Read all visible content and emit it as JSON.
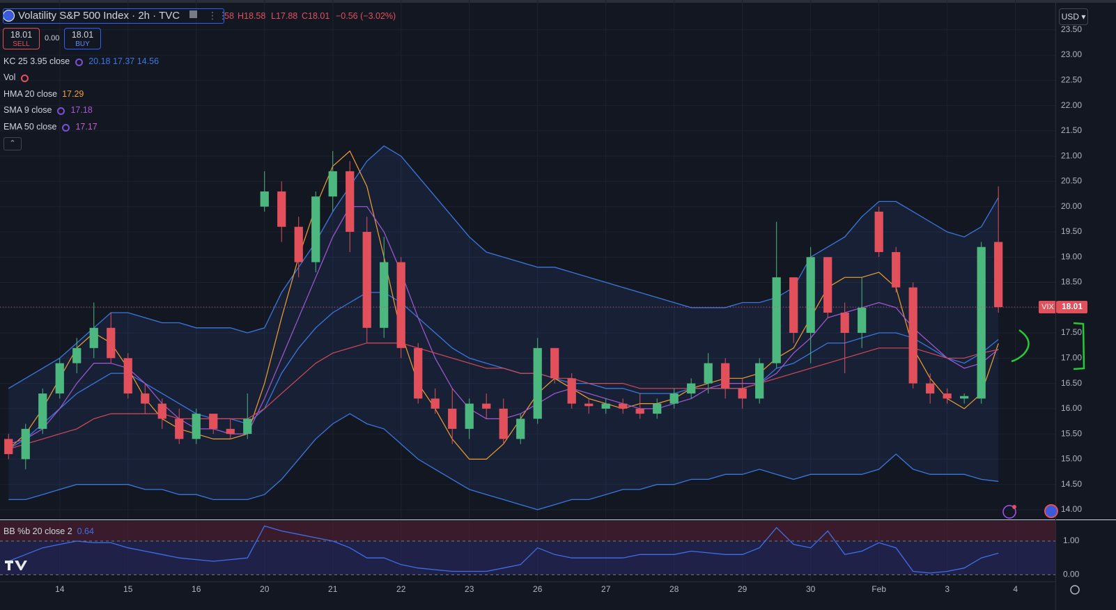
{
  "header": {
    "symbol": "Volatility S&P 500 Index · 2h · TVC",
    "open_fragment": "58",
    "high": "H18.58",
    "low": "L17.88",
    "close": "C18.01",
    "change": "−0.56 (−3.02%)",
    "sell_price": "18.01",
    "sell": "SELL",
    "spread": "0.00",
    "buy_price": "18.01",
    "buy": "BUY",
    "currency": "USD",
    "volume": "Vol"
  },
  "chart_data": [
    {
      "type": "candlestick",
      "symbol_tag": "VIX",
      "up_color": "#4cb87f",
      "down_color": "#e2505c",
      "xlim": [
        -0.5,
        61.34
      ],
      "ylim": [
        13.82,
        24.09
      ],
      "grid": true,
      "xticks": [
        {
          "value": 3,
          "label": "14"
        },
        {
          "value": 7,
          "label": "15"
        },
        {
          "value": 11,
          "label": "16"
        },
        {
          "value": 15,
          "label": "20"
        },
        {
          "value": 19,
          "label": "21"
        },
        {
          "value": 23,
          "label": "22"
        },
        {
          "value": 27,
          "label": "23"
        },
        {
          "value": 31,
          "label": "26"
        },
        {
          "value": 35,
          "label": "27"
        },
        {
          "value": 39,
          "label": "28"
        },
        {
          "value": 43,
          "label": "29"
        },
        {
          "value": 47,
          "label": "30"
        },
        {
          "value": 51,
          "label": "Feb"
        },
        {
          "value": 55,
          "label": "3"
        },
        {
          "value": 59,
          "label": "4"
        }
      ],
      "yticks": [
        {
          "value": 14,
          "label": "14.00"
        },
        {
          "value": 14.5,
          "label": "14.50"
        },
        {
          "value": 15,
          "label": "15.00"
        },
        {
          "value": 15.5,
          "label": "15.50"
        },
        {
          "value": 16,
          "label": "16.00"
        },
        {
          "value": 16.5,
          "label": "16.50"
        },
        {
          "value": 17,
          "label": "17.00"
        },
        {
          "value": 17.5,
          "label": "17.50"
        },
        {
          "value": 18,
          "label": "18.00"
        },
        {
          "value": 18.5,
          "label": "18.50"
        },
        {
          "value": 19,
          "label": "19.00"
        },
        {
          "value": 19.5,
          "label": "19.50"
        },
        {
          "value": 20,
          "label": "20.00"
        },
        {
          "value": 20.5,
          "label": "20.50"
        },
        {
          "value": 21,
          "label": "21.00"
        },
        {
          "value": 21.5,
          "label": "21.50"
        },
        {
          "value": 22,
          "label": "22.00"
        },
        {
          "value": 22.5,
          "label": "22.50"
        },
        {
          "value": 23,
          "label": "23.00"
        },
        {
          "value": 23.5,
          "label": "23.50"
        }
      ],
      "open": [
        15.4,
        15.0,
        15.6,
        16.3,
        16.9,
        17.2,
        17.6,
        17.0,
        16.3,
        16.1,
        15.8,
        15.4,
        15.9,
        15.6,
        15.5,
        20.0,
        20.3,
        19.6,
        18.9,
        20.2,
        20.7,
        19.5,
        17.6,
        18.9,
        17.2,
        16.2,
        16.0,
        15.6,
        16.1,
        16.0,
        15.4,
        15.8,
        17.2,
        16.6,
        16.1,
        16.0,
        16.1,
        16.0,
        15.9,
        16.1,
        16.3,
        16.5,
        16.9,
        16.4,
        16.2,
        16.9,
        18.6,
        17.5,
        19.0,
        17.9,
        17.5,
        19.9,
        19.1,
        18.4,
        16.5,
        16.3,
        16.2,
        16.2,
        19.3
      ],
      "high": [
        15.5,
        15.7,
        16.4,
        17.0,
        17.4,
        18.1,
        17.9,
        17.1,
        16.5,
        16.2,
        16.0,
        16.0,
        15.9,
        15.8,
        16.3,
        20.7,
        20.5,
        19.8,
        20.3,
        21.1,
        20.9,
        19.8,
        19.4,
        19.0,
        17.3,
        16.4,
        16.4,
        16.2,
        16.3,
        16.2,
        15.9,
        17.4,
        17.2,
        16.7,
        16.2,
        16.2,
        16.2,
        16.3,
        16.2,
        16.4,
        16.6,
        17.1,
        17.0,
        16.6,
        17.0,
        19.7,
        18.6,
        19.2,
        19.0,
        18.1,
        18.6,
        20.0,
        19.2,
        18.5,
        16.7,
        16.4,
        16.3,
        19.3,
        20.4
      ],
      "low": [
        15.0,
        14.8,
        15.5,
        16.2,
        16.7,
        17.0,
        16.9,
        16.2,
        15.9,
        15.6,
        15.3,
        15.3,
        15.5,
        15.4,
        15.4,
        19.9,
        19.3,
        18.6,
        18.7,
        19.9,
        19.1,
        17.3,
        17.4,
        17.0,
        16.1,
        15.9,
        15.3,
        15.4,
        15.8,
        15.3,
        15.3,
        15.7,
        16.5,
        16.0,
        15.9,
        15.9,
        15.9,
        15.8,
        15.8,
        16.0,
        16.2,
        16.3,
        16.2,
        16.0,
        16.1,
        16.8,
        17.3,
        16.9,
        17.8,
        16.7,
        17.2,
        19.0,
        18.3,
        16.4,
        16.1,
        16.1,
        16.1,
        16.1,
        17.9
      ],
      "close": [
        15.1,
        15.6,
        16.3,
        16.9,
        17.2,
        17.6,
        17.0,
        16.3,
        16.1,
        15.8,
        15.4,
        15.9,
        15.6,
        15.5,
        15.8,
        20.3,
        19.6,
        18.9,
        20.2,
        20.7,
        19.5,
        17.6,
        18.9,
        17.2,
        16.2,
        16.0,
        15.6,
        16.1,
        16.0,
        15.4,
        15.8,
        17.2,
        16.6,
        16.1,
        16.05,
        16.1,
        16.0,
        15.9,
        16.1,
        16.3,
        16.5,
        16.9,
        16.4,
        16.2,
        16.9,
        18.6,
        17.5,
        19.0,
        17.9,
        17.5,
        18.0,
        19.1,
        18.4,
        16.5,
        16.3,
        16.2,
        16.25,
        19.2,
        18.01
      ],
      "series": [
        {
          "name": "KC 25 3.95 close",
          "color": "#3a78e0",
          "upper": [
            16.4,
            16.6,
            16.8,
            17.0,
            17.3,
            17.6,
            17.9,
            17.9,
            17.8,
            17.7,
            17.7,
            17.6,
            17.6,
            17.6,
            17.5,
            17.6,
            18.3,
            18.8,
            19.3,
            19.9,
            20.4,
            20.9,
            21.2,
            21.0,
            20.6,
            20.2,
            19.8,
            19.4,
            19.1,
            19.0,
            18.9,
            18.8,
            18.8,
            18.7,
            18.6,
            18.5,
            18.4,
            18.3,
            18.2,
            18.1,
            18.0,
            18.0,
            18.0,
            18.1,
            18.1,
            18.2,
            18.4,
            19.0,
            19.2,
            19.4,
            19.8,
            20.1,
            20.1,
            19.9,
            19.7,
            19.5,
            19.4,
            19.6,
            20.18
          ],
          "basis": [
            15.2,
            15.4,
            15.7,
            16.0,
            16.3,
            16.5,
            16.7,
            16.7,
            16.5,
            16.3,
            16.1,
            15.9,
            15.8,
            15.8,
            15.7,
            16.0,
            16.7,
            17.2,
            17.6,
            17.9,
            18.1,
            18.3,
            18.3,
            18.1,
            17.8,
            17.5,
            17.2,
            17.0,
            16.9,
            16.8,
            16.7,
            16.7,
            16.6,
            16.5,
            16.5,
            16.4,
            16.4,
            16.3,
            16.3,
            16.3,
            16.4,
            16.4,
            16.4,
            16.4,
            16.5,
            16.8,
            16.9,
            17.1,
            17.3,
            17.3,
            17.4,
            17.5,
            17.5,
            17.4,
            17.2,
            17.0,
            16.9,
            17.1,
            17.37
          ],
          "lower": [
            14.2,
            14.2,
            14.3,
            14.4,
            14.5,
            14.5,
            14.5,
            14.5,
            14.4,
            14.4,
            14.3,
            14.3,
            14.2,
            14.2,
            14.2,
            14.3,
            14.6,
            15.0,
            15.4,
            15.7,
            15.9,
            15.7,
            15.6,
            15.3,
            15.0,
            14.8,
            14.6,
            14.4,
            14.3,
            14.2,
            14.1,
            14.0,
            14.1,
            14.2,
            14.2,
            14.3,
            14.4,
            14.4,
            14.5,
            14.5,
            14.6,
            14.6,
            14.7,
            14.7,
            14.8,
            14.7,
            14.6,
            14.7,
            14.7,
            14.7,
            14.7,
            14.8,
            15.1,
            14.8,
            14.7,
            14.7,
            14.7,
            14.6,
            14.56
          ]
        },
        {
          "name": "HMA 20 close",
          "color": "#f0a030",
          "values": [
            15.2,
            15.5,
            16.0,
            16.6,
            17.2,
            17.5,
            17.3,
            16.8,
            16.2,
            15.8,
            15.6,
            15.5,
            15.4,
            15.4,
            15.5,
            16.5,
            17.8,
            19.0,
            20.0,
            20.8,
            21.1,
            20.4,
            19.0,
            17.5,
            16.5,
            16.0,
            15.4,
            15.0,
            15.0,
            15.3,
            15.8,
            16.3,
            16.6,
            16.4,
            16.2,
            16.1,
            16.0,
            16.1,
            16.1,
            16.2,
            16.4,
            16.5,
            16.6,
            16.6,
            16.7,
            17.0,
            17.2,
            17.8,
            18.4,
            18.6,
            18.6,
            18.7,
            18.4,
            17.2,
            16.6,
            16.2,
            16.0,
            16.3,
            17.29
          ]
        },
        {
          "name": "SMA 9 close",
          "color": "#a65ad8",
          "values": [
            15.3,
            15.4,
            15.6,
            16.0,
            16.5,
            16.9,
            16.9,
            16.8,
            16.5,
            16.1,
            15.8,
            15.6,
            15.6,
            15.5,
            15.5,
            16.2,
            17.0,
            17.8,
            18.6,
            19.4,
            20.0,
            20.0,
            19.5,
            18.7,
            17.8,
            17.0,
            16.4,
            16.0,
            15.8,
            15.8,
            15.9,
            16.1,
            16.3,
            16.4,
            16.3,
            16.2,
            16.1,
            16.0,
            16.0,
            16.1,
            16.2,
            16.4,
            16.5,
            16.5,
            16.5,
            16.7,
            17.1,
            17.4,
            17.8,
            17.9,
            18.0,
            18.1,
            18.0,
            17.6,
            17.3,
            17.0,
            16.8,
            16.9,
            17.18
          ]
        },
        {
          "name": "EMA 50 close",
          "color": "#d84a58",
          "values": [
            15.2,
            15.3,
            15.4,
            15.5,
            15.6,
            15.8,
            15.9,
            15.9,
            15.9,
            15.9,
            15.8,
            15.8,
            15.8,
            15.8,
            15.8,
            16.0,
            16.3,
            16.6,
            16.9,
            17.1,
            17.2,
            17.3,
            17.3,
            17.3,
            17.2,
            17.1,
            17.0,
            16.9,
            16.8,
            16.8,
            16.7,
            16.7,
            16.6,
            16.6,
            16.5,
            16.5,
            16.5,
            16.4,
            16.4,
            16.4,
            16.4,
            16.4,
            16.4,
            16.4,
            16.5,
            16.6,
            16.7,
            16.8,
            16.9,
            17.0,
            17.1,
            17.2,
            17.2,
            17.2,
            17.1,
            17.0,
            17.0,
            17.1,
            17.17
          ]
        }
      ]
    },
    {
      "type": "line",
      "xlim": [
        -0.5,
        61.34
      ],
      "ylim": [
        -0.2,
        1.6
      ],
      "yticks": [
        {
          "value": 0,
          "label": "0.00"
        },
        {
          "value": 1,
          "label": "1.00"
        }
      ],
      "series": [
        {
          "name": "BB %b 20 close 2",
          "color": "#3f6fe8",
          "values": [
            0.4,
            0.6,
            0.8,
            0.9,
            1.0,
            0.95,
            0.95,
            0.8,
            0.7,
            0.6,
            0.5,
            0.45,
            0.4,
            0.45,
            0.5,
            1.45,
            1.3,
            1.2,
            1.1,
            1.0,
            0.8,
            0.5,
            0.5,
            0.3,
            0.2,
            0.15,
            0.1,
            0.1,
            0.1,
            0.2,
            0.3,
            0.8,
            0.6,
            0.5,
            0.5,
            0.5,
            0.5,
            0.6,
            0.6,
            0.6,
            0.7,
            0.65,
            0.6,
            0.6,
            0.8,
            1.4,
            0.9,
            0.8,
            1.3,
            0.6,
            0.7,
            0.95,
            0.8,
            0.1,
            0.05,
            0.1,
            0.2,
            0.5,
            0.64
          ]
        }
      ]
    }
  ]
}
